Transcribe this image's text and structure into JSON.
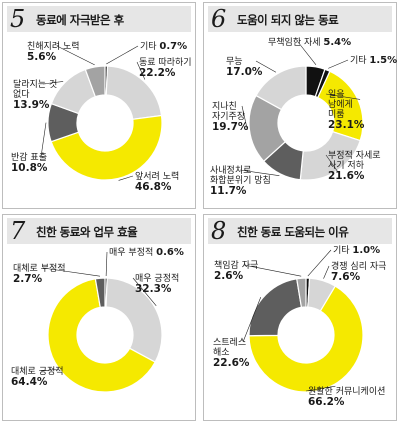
{
  "panels": [
    {
      "number": "5",
      "title": "동료에 자극받은 후"
    },
    {
      "number": "6",
      "title": "도움이 되지 않는 동료"
    },
    {
      "number": "7",
      "title": "친한 동료와 업무 효율"
    },
    {
      "number": "8",
      "title": "친한 동료 도움되는 이유"
    }
  ],
  "colors": {
    "yellow": "#f5e900",
    "light_gray": "#d6d6d6",
    "medium_gray": "#a3a3a3",
    "dark_gray": "#5e5e5e",
    "black": "#111111",
    "header_bg": "#e6e6e6",
    "border": "#bdbdbd"
  },
  "chart_data": [
    {
      "type": "pie",
      "title": "동료에 자극받은 후",
      "donut": true,
      "slices": [
        {
          "label": "기타",
          "value": 0.7,
          "color": "black"
        },
        {
          "label": "동료 따라하기",
          "value": 22.2,
          "color": "light_gray"
        },
        {
          "label": "앞서려 노력",
          "value": 46.8,
          "color": "yellow"
        },
        {
          "label": "반감 표출",
          "value": 10.8,
          "color": "dark_gray"
        },
        {
          "label": "달라지는 것 없다",
          "value": 13.9,
          "color": "light_gray"
        },
        {
          "label": "친해지려 노력",
          "value": 5.6,
          "color": "medium_gray"
        }
      ]
    },
    {
      "type": "pie",
      "title": "도움이 되지 않는 동료",
      "donut": true,
      "slices": [
        {
          "label": "무책임한 자세",
          "value": 5.4,
          "color": "black"
        },
        {
          "label": "기타",
          "value": 1.5,
          "color": "black"
        },
        {
          "label": "일을 남에게 미룸",
          "value": 23.1,
          "color": "yellow"
        },
        {
          "label": "부정적 자세로 사기 저하",
          "value": 21.6,
          "color": "light_gray"
        },
        {
          "label": "사내정치로 화합분위기 망침",
          "value": 11.7,
          "color": "dark_gray"
        },
        {
          "label": "지나친 자기주장",
          "value": 19.7,
          "color": "medium_gray"
        },
        {
          "label": "무능",
          "value": 17.0,
          "color": "light_gray"
        }
      ]
    },
    {
      "type": "pie",
      "title": "친한 동료와 업무 효율",
      "donut": true,
      "slices": [
        {
          "label": "매우 부정적",
          "value": 0.6,
          "color": "black"
        },
        {
          "label": "매우 긍정적",
          "value": 32.3,
          "color": "light_gray"
        },
        {
          "label": "대체로 긍정적",
          "value": 64.4,
          "color": "yellow"
        },
        {
          "label": "대체로 부정적",
          "value": 2.7,
          "color": "dark_gray"
        }
      ]
    },
    {
      "type": "pie",
      "title": "친한 동료 도움되는 이유",
      "donut": true,
      "slices": [
        {
          "label": "기타",
          "value": 1.0,
          "color": "black"
        },
        {
          "label": "경쟁 심리 자극",
          "value": 7.6,
          "color": "light_gray"
        },
        {
          "label": "원활한 커뮤니케이션",
          "value": 66.2,
          "color": "yellow"
        },
        {
          "label": "스트레스 해소",
          "value": 22.6,
          "color": "dark_gray"
        },
        {
          "label": "책임감 자극",
          "value": 2.6,
          "color": "medium_gray"
        }
      ]
    }
  ]
}
